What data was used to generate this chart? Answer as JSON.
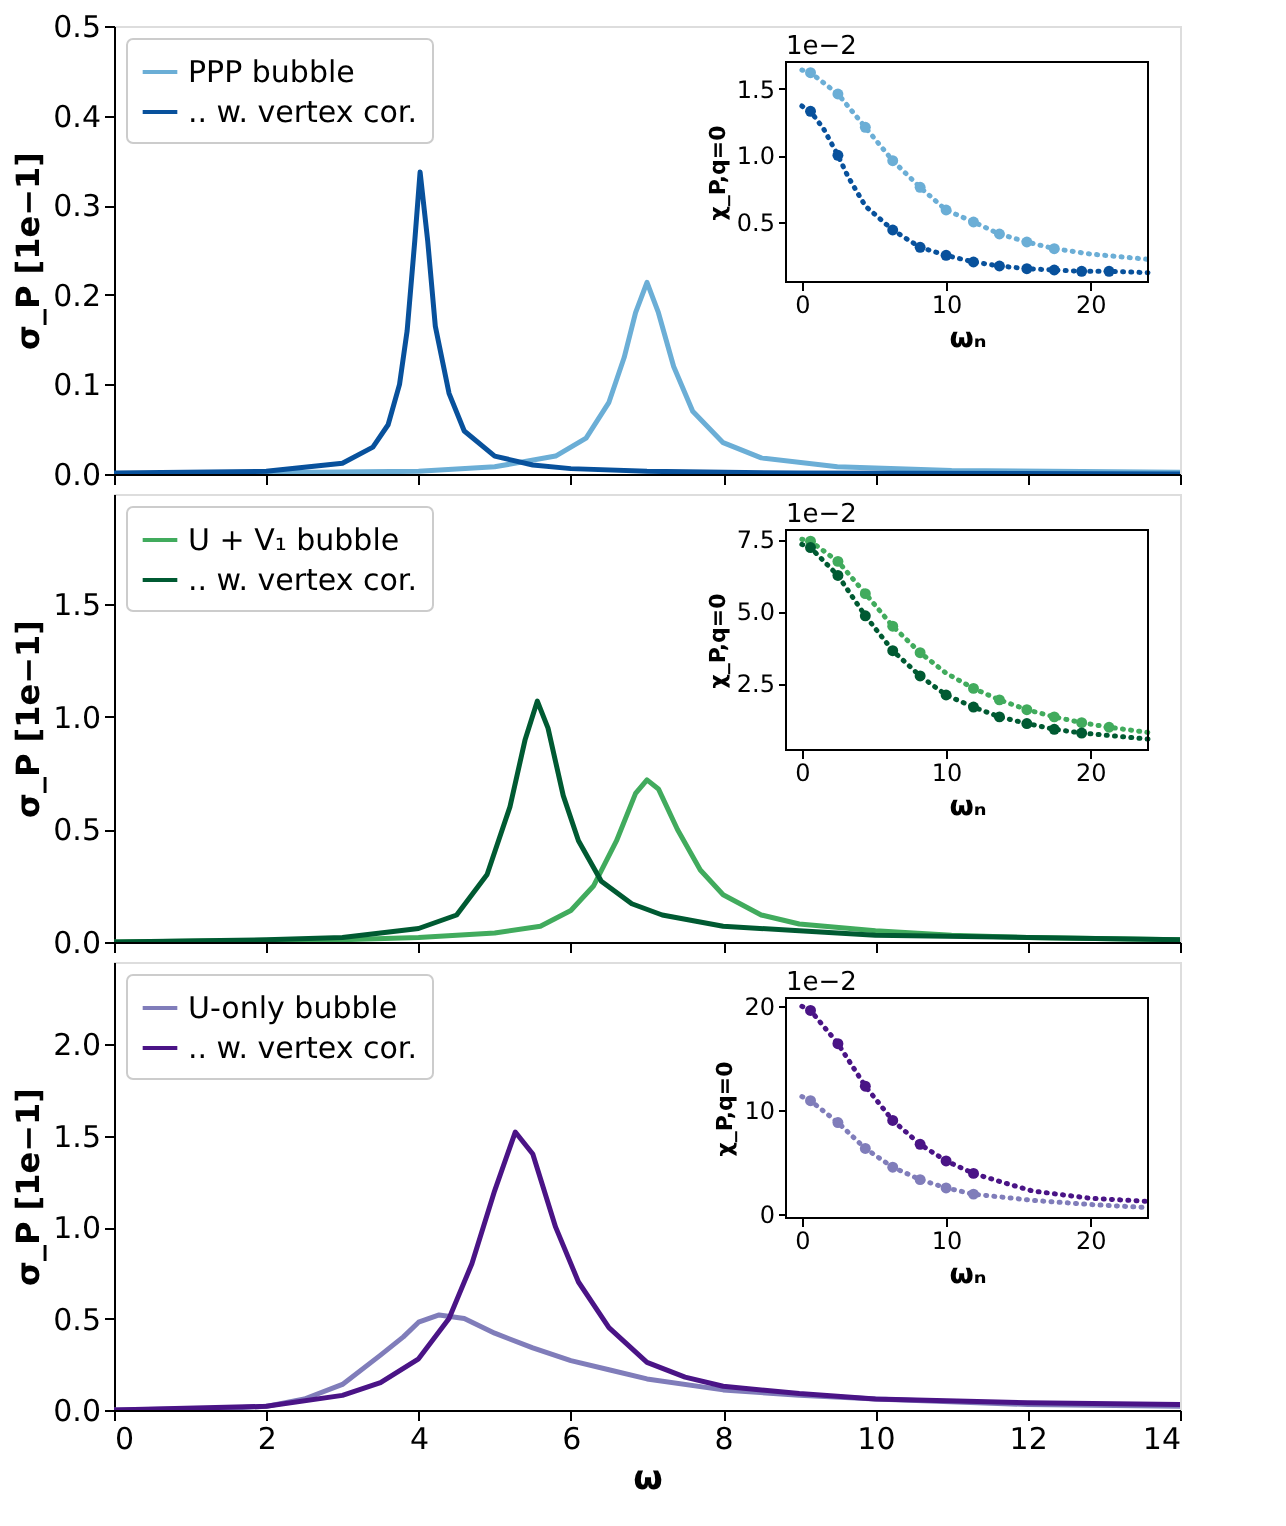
{
  "chart_data": [
    {
      "type": "line",
      "ylabel": "σ_P [1e−1]",
      "xlim": [
        0,
        14
      ],
      "xticks": [
        0,
        2,
        4,
        6,
        8,
        10,
        12,
        14
      ],
      "ylim": [
        0,
        0.5
      ],
      "yticks": [
        {
          "value": 0,
          "label": "0.0"
        },
        0.1,
        0.2,
        0.3,
        0.4,
        0.5
      ],
      "tick_labels": "y",
      "legend": "top left",
      "series": [
        {
          "name": "PPP bubble",
          "color": "#6baed6",
          "x": [
            0,
            4,
            5,
            5.8,
            6.2,
            6.5,
            6.7,
            6.85,
            7.0,
            7.15,
            7.35,
            7.6,
            8,
            8.5,
            9.5,
            11,
            14
          ],
          "values": [
            0,
            0.003,
            0.008,
            0.02,
            0.04,
            0.08,
            0.13,
            0.18,
            0.214,
            0.18,
            0.12,
            0.07,
            0.035,
            0.018,
            0.008,
            0.004,
            0.002
          ]
        },
        {
          "name": ".. w. vertex cor.",
          "color": "#08519c",
          "x": [
            0,
            2,
            3,
            3.4,
            3.6,
            3.75,
            3.85,
            3.95,
            4.02,
            4.12,
            4.22,
            4.4,
            4.6,
            5,
            5.5,
            6,
            7,
            9,
            14
          ],
          "values": [
            0.001,
            0.003,
            0.012,
            0.03,
            0.055,
            0.1,
            0.16,
            0.26,
            0.337,
            0.26,
            0.165,
            0.09,
            0.048,
            0.02,
            0.01,
            0.006,
            0.003,
            0.001,
            0
          ]
        }
      ]
    },
    {
      "type": "line",
      "xlabel": "ωₙ",
      "ylabel": "χ_P,q=0",
      "xlim": [
        -1.1,
        24
      ],
      "xticks": [
        0,
        10,
        20
      ],
      "ylim": [
        0.05,
        1.7
      ],
      "yticks": [
        0.5,
        {
          "value": 1,
          "label": "1.0"
        },
        1.5
      ],
      "line_style": "dotted",
      "annotations": [
        "1e−2"
      ],
      "series": [
        {
          "color": "#6baed6",
          "x": [
            0,
            0.6,
            2.5,
            4.4,
            6.3,
            8.2,
            10.0,
            11.9,
            13.7,
            15.6,
            17.5,
            20,
            24
          ],
          "values": [
            1.64,
            1.62,
            1.46,
            1.21,
            0.96,
            0.76,
            0.59,
            0.5,
            0.41,
            0.35,
            0.3,
            0.26,
            0.22
          ]
        },
        {
          "type": "scatter",
          "marker": "circle",
          "color": "#6baed6",
          "x": [
            0.6,
            2.5,
            4.4,
            6.3,
            8.2,
            10.0,
            11.9,
            13.7,
            15.6,
            17.5
          ],
          "values": [
            1.62,
            1.46,
            1.21,
            0.96,
            0.76,
            0.59,
            0.5,
            0.41,
            0.35,
            0.3
          ]
        },
        {
          "color": "#08519c",
          "x": [
            0,
            0.6,
            1.5,
            2.5,
            3.2,
            4.4,
            6.3,
            8.2,
            10.0,
            11.9,
            13.7,
            15.6,
            17.5,
            19.4,
            21.3,
            24
          ],
          "values": [
            1.37,
            1.33,
            1.2,
            1.0,
            0.84,
            0.62,
            0.44,
            0.31,
            0.25,
            0.2,
            0.17,
            0.15,
            0.14,
            0.13,
            0.13,
            0.12
          ]
        },
        {
          "type": "scatter",
          "marker": "circle",
          "color": "#08519c",
          "x": [
            0.6,
            2.5,
            6.3,
            8.2,
            10.0,
            11.9,
            13.7,
            15.6,
            17.5,
            19.4,
            21.3
          ],
          "values": [
            1.33,
            1.0,
            0.44,
            0.31,
            0.25,
            0.2,
            0.17,
            0.15,
            0.14,
            0.13,
            0.13
          ]
        }
      ]
    },
    {
      "type": "line",
      "ylabel": "σ_P [1e−1]",
      "xlim": [
        0,
        14
      ],
      "xticks": [
        0,
        2,
        4,
        6,
        8,
        10,
        12,
        14
      ],
      "ylim": [
        0,
        1.99
      ],
      "yticks": [
        {
          "value": 0,
          "label": "0.0"
        },
        0.5,
        {
          "value": 1,
          "label": "1.0"
        },
        1.5
      ],
      "tick_labels": "y",
      "legend": "top left",
      "series": [
        {
          "name": "U + V₁ bubble",
          "color": "#41ab5d",
          "x": [
            0,
            3,
            4,
            5,
            5.6,
            6,
            6.3,
            6.6,
            6.85,
            7.0,
            7.15,
            7.4,
            7.7,
            8,
            8.5,
            9,
            10,
            11,
            12,
            14
          ],
          "values": [
            0,
            0.01,
            0.02,
            0.04,
            0.07,
            0.14,
            0.25,
            0.45,
            0.66,
            0.72,
            0.68,
            0.5,
            0.32,
            0.21,
            0.12,
            0.08,
            0.05,
            0.03,
            0.02,
            0.01
          ]
        },
        {
          "name": ".. w. vertex cor.",
          "color": "#005a32",
          "x": [
            0,
            2,
            3,
            4,
            4.5,
            4.9,
            5.2,
            5.4,
            5.56,
            5.7,
            5.9,
            6.1,
            6.4,
            6.8,
            7.2,
            8,
            9,
            10,
            12,
            14
          ],
          "values": [
            0,
            0.01,
            0.02,
            0.06,
            0.12,
            0.3,
            0.6,
            0.9,
            1.07,
            0.95,
            0.65,
            0.45,
            0.27,
            0.17,
            0.12,
            0.07,
            0.05,
            0.03,
            0.02,
            0.01
          ]
        }
      ]
    },
    {
      "type": "line",
      "xlabel": "ωₙ",
      "ylabel": "χ_P,q=0",
      "xlim": [
        -1.1,
        24
      ],
      "xticks": [
        0,
        10,
        20
      ],
      "ylim": [
        0.18,
        7.82
      ],
      "yticks": [
        2.5,
        {
          "value": 5,
          "label": "5.0"
        },
        7.5
      ],
      "line_style": "dotted",
      "annotations": [
        "1e−2"
      ],
      "series": [
        {
          "color": "#41ab5d",
          "x": [
            0,
            0.6,
            2.5,
            4.4,
            6.3,
            8.2,
            10.0,
            11.9,
            13.7,
            15.6,
            17.5,
            19.4,
            21.3,
            24
          ],
          "values": [
            7.5,
            7.43,
            6.73,
            5.61,
            4.48,
            3.56,
            2.85,
            2.32,
            1.92,
            1.58,
            1.33,
            1.13,
            0.97,
            0.79
          ]
        },
        {
          "type": "scatter",
          "marker": "circle",
          "color": "#41ab5d",
          "x": [
            0.6,
            2.5,
            4.4,
            6.3,
            8.2,
            11.9,
            13.7,
            15.6,
            17.5,
            19.4,
            21.3
          ],
          "values": [
            7.43,
            6.73,
            5.61,
            4.48,
            3.56,
            2.32,
            1.92,
            1.58,
            1.33,
            1.13,
            0.97
          ]
        },
        {
          "color": "#005a32",
          "x": [
            0,
            0.6,
            2.5,
            4.4,
            6.3,
            8.2,
            10.0,
            11.9,
            13.7,
            15.6,
            17.5,
            19.4,
            24
          ],
          "values": [
            7.32,
            7.21,
            6.24,
            4.84,
            3.63,
            2.75,
            2.09,
            1.67,
            1.33,
            1.1,
            0.9,
            0.77,
            0.56
          ]
        },
        {
          "type": "scatter",
          "marker": "circle",
          "color": "#005a32",
          "x": [
            0.6,
            2.5,
            4.4,
            6.3,
            8.2,
            10.0,
            11.9,
            13.7,
            15.6,
            17.5,
            19.4
          ],
          "values": [
            7.21,
            6.24,
            4.84,
            3.63,
            2.75,
            2.09,
            1.67,
            1.33,
            1.1,
            0.9,
            0.77
          ]
        }
      ]
    },
    {
      "type": "line",
      "xlabel": "ω",
      "ylabel": "σ_P [1e−1]",
      "xlim": [
        0,
        14
      ],
      "xticks": [
        0,
        2,
        4,
        6,
        8,
        10,
        12,
        14
      ],
      "ylim": [
        0,
        2.45
      ],
      "yticks": [
        {
          "value": 0,
          "label": "0.0"
        },
        0.5,
        {
          "value": 1,
          "label": "1.0"
        },
        1.5,
        {
          "value": 2,
          "label": "2.0"
        }
      ],
      "legend": "top left",
      "series": [
        {
          "name": "U-only bubble",
          "color": "#807dba",
          "x": [
            0,
            1.5,
            2,
            2.5,
            3,
            3.5,
            3.8,
            4.0,
            4.27,
            4.6,
            5,
            5.5,
            6,
            6.5,
            7,
            8,
            9,
            10,
            12,
            14
          ],
          "values": [
            0,
            0.01,
            0.02,
            0.06,
            0.14,
            0.3,
            0.4,
            0.48,
            0.52,
            0.5,
            0.42,
            0.34,
            0.27,
            0.22,
            0.17,
            0.11,
            0.08,
            0.06,
            0.03,
            0.02
          ]
        },
        {
          "name": ".. w. vertex cor.",
          "color": "#4a1486",
          "x": [
            0,
            2,
            3,
            3.5,
            4,
            4.4,
            4.7,
            5.0,
            5.27,
            5.5,
            5.8,
            6.1,
            6.5,
            7,
            7.5,
            8,
            9,
            10,
            12,
            14
          ],
          "values": [
            0,
            0.02,
            0.08,
            0.15,
            0.28,
            0.5,
            0.8,
            1.2,
            1.52,
            1.4,
            1.0,
            0.7,
            0.45,
            0.26,
            0.18,
            0.13,
            0.09,
            0.06,
            0.04,
            0.03
          ]
        }
      ]
    },
    {
      "type": "line",
      "xlabel": "ωₙ",
      "ylabel": "χ_P,q=0",
      "xlim": [
        -1.1,
        24
      ],
      "xticks": [
        0,
        10,
        20
      ],
      "ylim": [
        -0.4,
        20.8
      ],
      "yticks": [
        0,
        10,
        20
      ],
      "line_style": "dotted",
      "annotations": [
        "1e−2"
      ],
      "series": [
        {
          "color": "#4a1486",
          "x": [
            0,
            0.6,
            2.5,
            4.4,
            6.3,
            8.2,
            10.0,
            11.9,
            14,
            16,
            20,
            24
          ],
          "values": [
            20.0,
            19.6,
            16.4,
            12.3,
            9.0,
            6.7,
            5.1,
            3.9,
            3.0,
            2.2,
            1.5,
            1.2
          ]
        },
        {
          "type": "scatter",
          "marker": "circle",
          "color": "#4a1486",
          "x": [
            0.6,
            2.5,
            4.4,
            6.3,
            8.2,
            10.0,
            11.9
          ],
          "values": [
            19.6,
            16.4,
            12.3,
            9.0,
            6.7,
            5.1,
            3.9
          ]
        },
        {
          "color": "#807dba",
          "x": [
            0,
            0.6,
            2.5,
            4.4,
            6.3,
            8.2,
            10.0,
            11.9,
            16,
            20,
            24
          ],
          "values": [
            11.3,
            10.9,
            8.8,
            6.3,
            4.5,
            3.3,
            2.5,
            1.9,
            1.3,
            0.9,
            0.6
          ]
        },
        {
          "type": "scatter",
          "marker": "circle",
          "color": "#807dba",
          "x": [
            0.6,
            2.5,
            4.4,
            6.3,
            8.2,
            10.0,
            11.9
          ],
          "values": [
            10.9,
            8.8,
            6.3,
            4.5,
            3.3,
            2.5,
            1.9
          ]
        }
      ]
    }
  ]
}
